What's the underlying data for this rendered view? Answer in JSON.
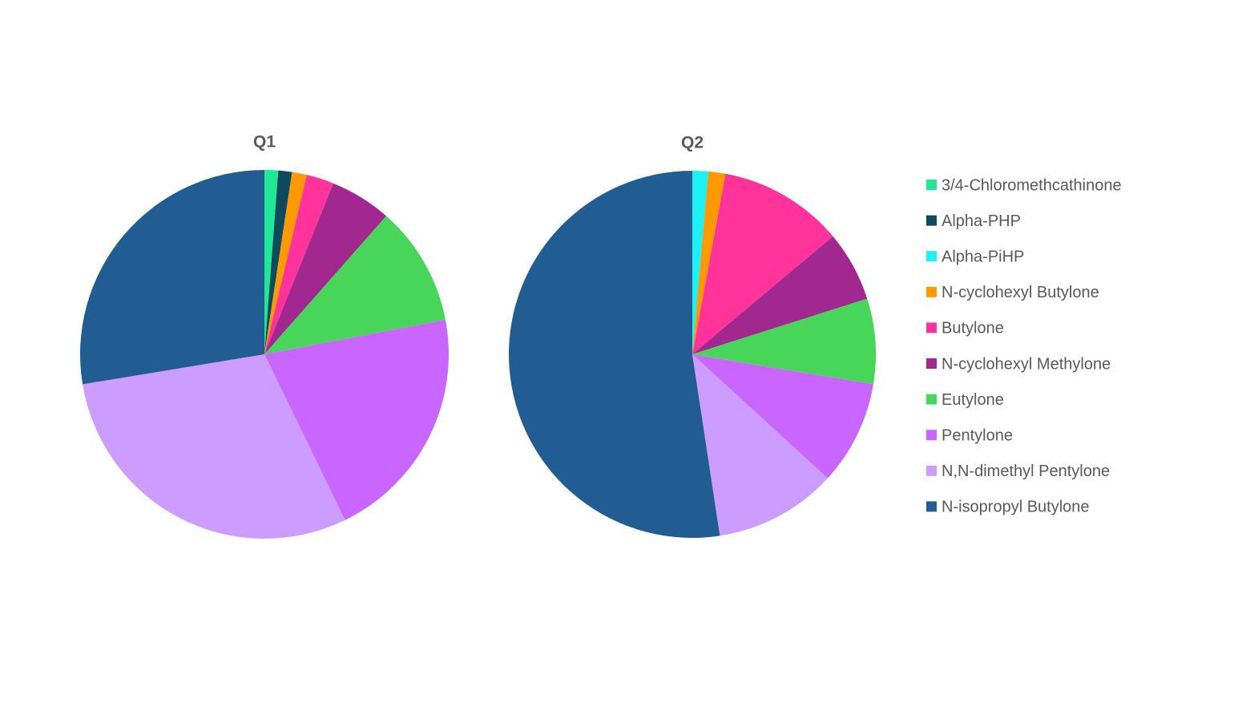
{
  "chart_data": [
    {
      "type": "pie",
      "title": "Q1",
      "categories": [
        "3/4-Chloromethcathinone",
        "Alpha-PHP",
        "Alpha-PiHP",
        "N-cyclohexyl Butylone",
        "Butylone",
        "N-cyclohexyl Methylone",
        "Eutylone",
        "Pentylone",
        "N,N-dimethyl Pentylone",
        "N-isopropyl Butylone"
      ],
      "values": [
        1.2,
        1.2,
        0,
        1.3,
        2.4,
        5.4,
        10.5,
        20.8,
        29.6,
        27.6
      ],
      "colors": [
        "#20e696",
        "#0e4a5c",
        "#1ef0f5",
        "#ff9900",
        "#ff3399",
        "#a1288f",
        "#47d65a",
        "#c966ff",
        "#cc9cff",
        "#215d92"
      ]
    },
    {
      "type": "pie",
      "title": "Q2",
      "categories": [
        "3/4-Chloromethcathinone",
        "Alpha-PHP",
        "Alpha-PiHP",
        "N-cyclohexyl Butylone",
        "Butylone",
        "N-cyclohexyl Methylone",
        "Eutylone",
        "Pentylone",
        "N,N-dimethyl Pentylone",
        "N-isopropyl Butylone"
      ],
      "values": [
        0,
        0,
        1.4,
        1.5,
        11,
        6.2,
        7.5,
        9.2,
        10.8,
        52.4
      ],
      "colors": [
        "#20e696",
        "#0e4a5c",
        "#1ef0f5",
        "#ff9900",
        "#ff3399",
        "#a1288f",
        "#47d65a",
        "#c966ff",
        "#cc9cff",
        "#215d92"
      ]
    }
  ]
}
